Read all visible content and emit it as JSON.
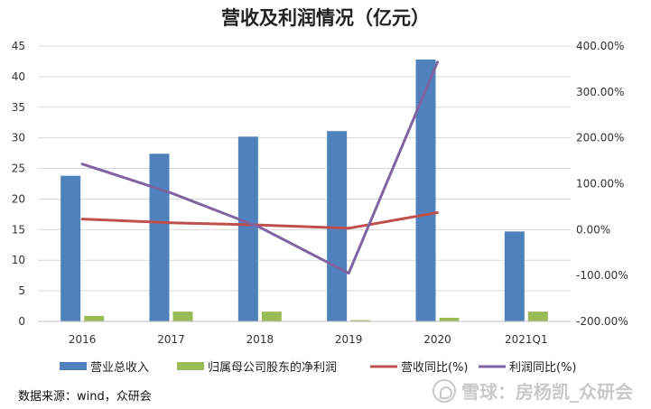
{
  "chart_data": {
    "type": "bar",
    "title": "营收及利润情况（亿元）",
    "categories": [
      "2016",
      "2017",
      "2018",
      "2019",
      "2020",
      "2021Q1"
    ],
    "series": [
      {
        "name": "营业总收入",
        "kind": "bar",
        "axis": "left",
        "color": "#4f81bd",
        "values": [
          23.8,
          27.4,
          30.2,
          31.1,
          42.8,
          14.7
        ]
      },
      {
        "name": "归属母公司股东的净利润",
        "kind": "bar",
        "axis": "left",
        "color": "#9bbb59",
        "values": [
          0.9,
          1.6,
          1.6,
          0.2,
          0.6,
          1.6
        ]
      },
      {
        "name": "营收同比(%)",
        "kind": "line",
        "axis": "right",
        "color": "#c0504d",
        "values": [
          23.0,
          15.0,
          10.0,
          3.0,
          37.0,
          null
        ]
      },
      {
        "name": "利润同比(%)",
        "kind": "line",
        "axis": "right",
        "color": "#8064a2",
        "values": [
          143.0,
          80.0,
          5.0,
          -95.0,
          365.0,
          null
        ]
      }
    ],
    "y_left": {
      "min": 0,
      "max": 45,
      "step": 5,
      "ticks": [
        "0",
        "5",
        "10",
        "15",
        "20",
        "25",
        "30",
        "35",
        "40",
        "45"
      ]
    },
    "y_right": {
      "min": -200,
      "max": 400,
      "step": 100,
      "ticks": [
        "-200.00%",
        "-100.00%",
        "0.00%",
        "100.00%",
        "200.00%",
        "300.00%",
        "400.00%"
      ]
    },
    "grid": true,
    "legend_position": "bottom"
  },
  "source": "数据来源：wind，众研会",
  "watermark": "雪球：房杨凯_众研会"
}
